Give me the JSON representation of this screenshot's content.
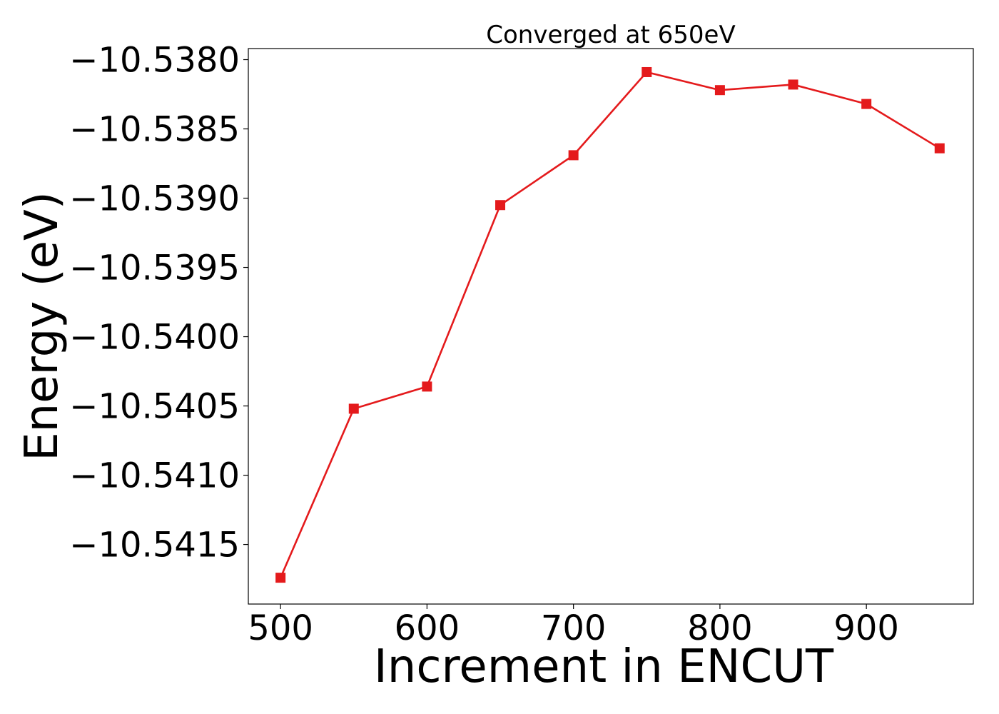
{
  "chart_data": {
    "type": "line",
    "title": "Converged at 650eV",
    "xlabel": "Increment in ENCUT",
    "ylabel": "Energy (eV)",
    "x": [
      500,
      550,
      600,
      650,
      700,
      750,
      800,
      850,
      900,
      950
    ],
    "series": [
      {
        "name": "",
        "color": "#e41a1c",
        "marker": "square",
        "values": [
          -10.54174,
          -10.54052,
          -10.54036,
          -10.53905,
          -10.53869,
          -10.53809,
          -10.53822,
          -10.53818,
          -10.53832,
          -10.53864
        ]
      }
    ],
    "xlim": [
      478,
      973
    ],
    "ylim": [
      -10.54193,
      -10.53792
    ],
    "xticks": [
      500,
      600,
      700,
      800,
      900
    ],
    "xtick_labels": [
      "500",
      "600",
      "700",
      "800",
      "900"
    ],
    "yticks": [
      -10.538,
      -10.5385,
      -10.539,
      -10.5395,
      -10.54,
      -10.5405,
      -10.541,
      -10.5415
    ],
    "ytick_labels": [
      "−10.5380",
      "−10.5385",
      "−10.5390",
      "−10.5395",
      "−10.5400",
      "−10.5405",
      "−10.5410",
      "−10.5415"
    ],
    "grid": false,
    "legend": false
  }
}
